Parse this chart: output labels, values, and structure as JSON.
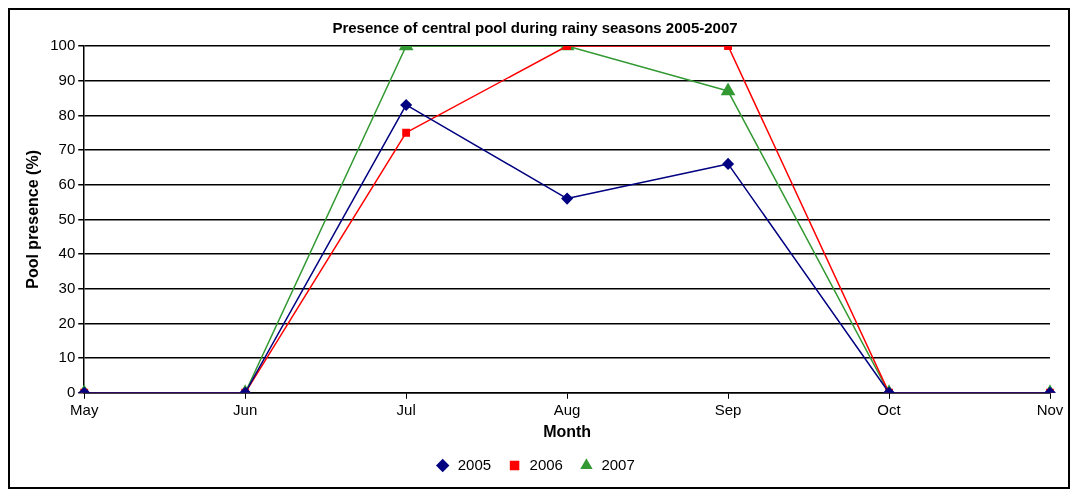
{
  "chart_data": {
    "type": "line",
    "title": "Presence of central pool during rainy seasons 2005-2007",
    "xlabel": "Month",
    "ylabel": "Pool presence (%)",
    "categories": [
      "May",
      "Jun",
      "Jul",
      "Aug",
      "Sep",
      "Oct",
      "Nov"
    ],
    "series": [
      {
        "name": "2005",
        "color": "#000080",
        "marker": "diamond",
        "values": [
          0,
          0,
          83,
          56,
          66,
          0,
          0
        ]
      },
      {
        "name": "2006",
        "color": "#ff0000",
        "marker": "square",
        "values": [
          0,
          0,
          75,
          100,
          100,
          0,
          0
        ]
      },
      {
        "name": "2007",
        "color": "#339933",
        "marker": "triangle",
        "values": [
          0,
          0,
          100,
          100,
          87,
          0,
          0
        ]
      }
    ],
    "ylim": [
      0,
      100
    ],
    "yticks": [
      0,
      10,
      20,
      30,
      40,
      50,
      60,
      70,
      80,
      90,
      100
    ],
    "grid": "y",
    "legend": "bottom",
    "line_style": "solid"
  }
}
